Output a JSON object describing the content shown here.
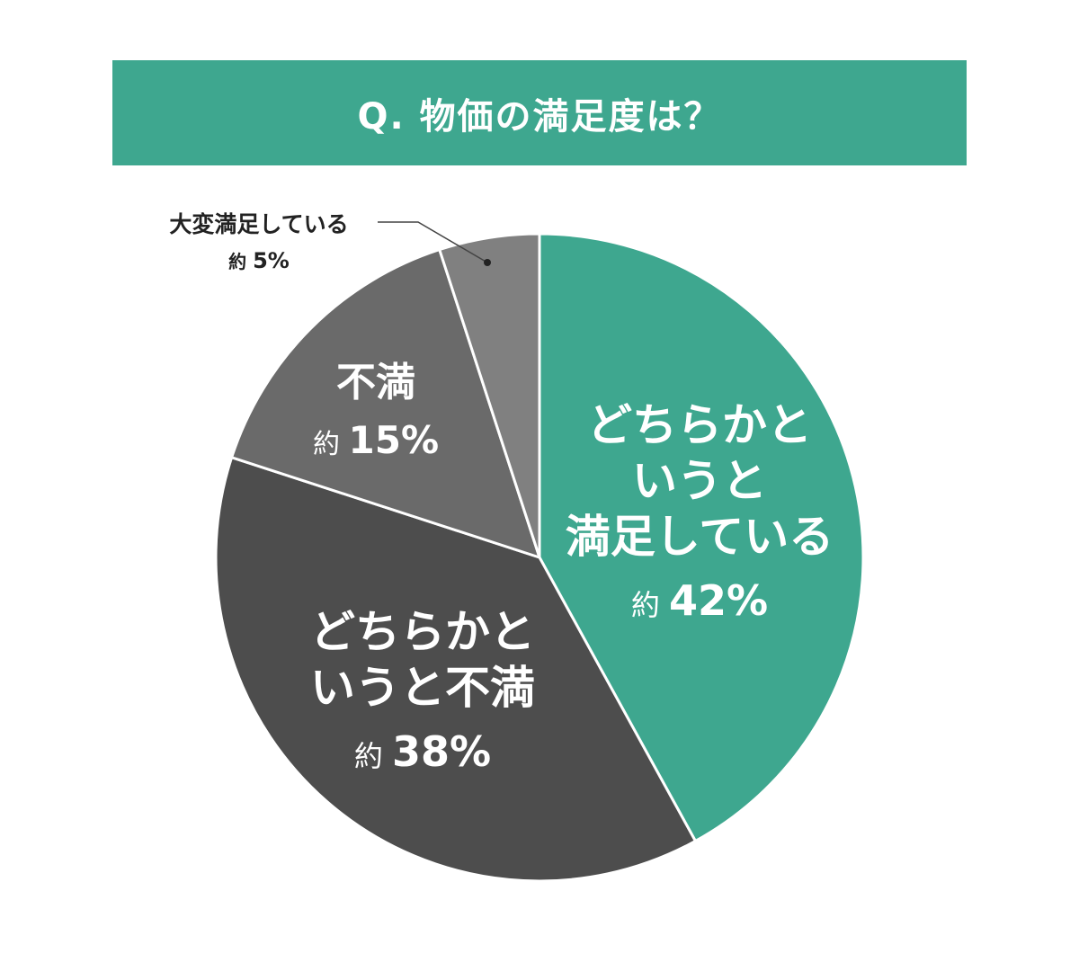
{
  "chart_data": {
    "type": "pie",
    "title": "Q. 物価の満足度は？",
    "approx_prefix": "約",
    "start_angle_deg": 0,
    "direction": "clockwise",
    "slices": [
      {
        "label": "どちらかというと満足している",
        "label_lines": [
          "どちらかと",
          "いうと",
          "満足している"
        ],
        "value": 42,
        "display": "42%",
        "color": "#3ea78f"
      },
      {
        "label": "どちらかというと不満",
        "label_lines": [
          "どちらかと",
          "いうと不満"
        ],
        "value": 38,
        "display": "38%",
        "color": "#4d4d4d"
      },
      {
        "label": "不満",
        "label_lines": [
          "不満"
        ],
        "value": 15,
        "display": "15%",
        "color": "#6a6a6a"
      },
      {
        "label": "大変満足している",
        "label_lines": [
          "大変満足している"
        ],
        "value": 5,
        "display": "5%",
        "color": "#808080"
      }
    ],
    "legend": "none",
    "grid": false
  }
}
